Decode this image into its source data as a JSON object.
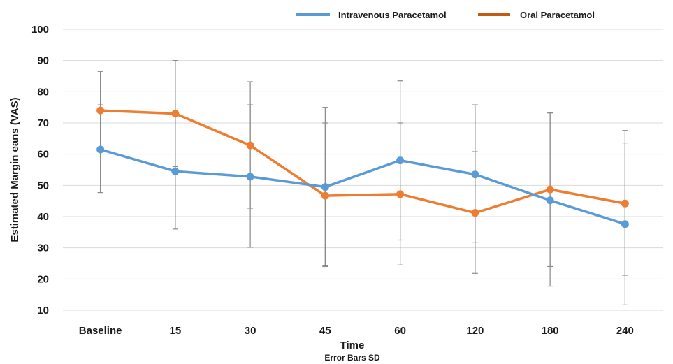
{
  "chart_data": {
    "type": "line",
    "categories": [
      "Baseline",
      "15",
      "30",
      "45",
      "60",
      "120",
      "180",
      "240"
    ],
    "xlabel": "Time",
    "xsublabel": "Error Bars SD",
    "ylabel": "Estimated Margin eans (VAS)",
    "ylim": [
      10,
      100
    ],
    "yticks": [
      10,
      20,
      30,
      40,
      50,
      60,
      70,
      80,
      90,
      100
    ],
    "grid": true,
    "legend_position": "top",
    "series": [
      {
        "name": "Intravenous Paracetamol",
        "color": "#5b9bd5",
        "values": [
          61.5,
          54.5,
          52.8,
          49.5,
          58.0,
          53.5,
          45.2,
          37.6
        ],
        "err_low": [
          47.7,
          36.0,
          30.2,
          24.2,
          32.5,
          31.8,
          17.7,
          21.2
        ],
        "err_high": [
          75.8,
          90.0,
          75.8,
          75.0,
          83.5,
          75.8,
          73.2,
          67.6
        ]
      },
      {
        "name": "Oral Paracetamol",
        "color": "#ed7d31",
        "values": [
          74.0,
          73.0,
          62.8,
          46.7,
          47.2,
          41.2,
          48.7,
          44.2
        ],
        "err_low": [
          61.0,
          56.0,
          42.7,
          24.0,
          24.5,
          21.8,
          24.0,
          11.7
        ],
        "err_high": [
          86.5,
          90.0,
          83.2,
          70.0,
          70.0,
          60.8,
          73.4,
          63.6
        ]
      }
    ]
  }
}
